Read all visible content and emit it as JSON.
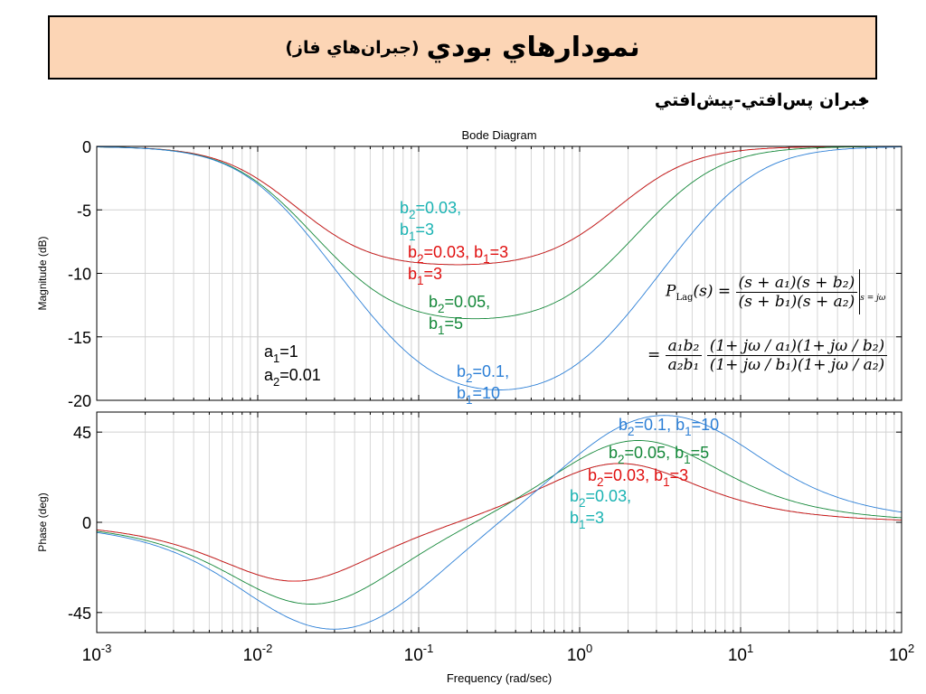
{
  "slide": {
    "title_main": "نمودارهاي بودي",
    "title_sub": "(جبران‌هاي فاز)",
    "bullet": "جبران پس‌افتي-پيش‌افتي"
  },
  "formula": {
    "lhs": "P",
    "lhs_sub": "Lag",
    "lhs_arg": "(s) =",
    "num1": "(s + a₁)(s + b₂)",
    "den1": "(s + b₁)(s + a₂)",
    "eval_sub": "s = jω",
    "eq": "=",
    "num2_a": "a₁b₂",
    "den2_a": "a₂b₁",
    "num2_b": "(1+ jω / a₁)(1+ jω / b₂)",
    "den2_b": "(1+ jω / b₁)(1+ jω / a₂)"
  },
  "chart_data": {
    "type": "line",
    "title": "Bode Diagram",
    "xlabel": "Frequency  (rad/sec)",
    "x_scale": "log",
    "xlim": [
      0.001,
      100
    ],
    "x_ticks": [
      {
        "base": "10",
        "exp": "-3"
      },
      {
        "base": "10",
        "exp": "-2"
      },
      {
        "base": "10",
        "exp": "-1"
      },
      {
        "base": "10",
        "exp": "0"
      },
      {
        "base": "10",
        "exp": "1"
      },
      {
        "base": "10",
        "exp": "2"
      }
    ],
    "grid": true,
    "params": {
      "a1": 1,
      "a2": 0.01
    },
    "params_label": [
      {
        "pre": "a",
        "sub": "1",
        "post": "=1"
      },
      {
        "pre": "a",
        "sub": "2",
        "post": "=0.01"
      }
    ],
    "magnitude": {
      "ylabel": "Magnitude (dB)",
      "ylim": [
        -20,
        0
      ],
      "y_ticks": [
        "0",
        "-5",
        "-10",
        "-15",
        "-20"
      ]
    },
    "phase": {
      "ylabel": "Phase (deg)",
      "ylim": [
        -55,
        55
      ],
      "y_ticks": [
        "45",
        "0",
        "-45"
      ]
    },
    "series": [
      {
        "b2": 0.03,
        "b1": 3,
        "color": "#1bb3b3"
      },
      {
        "b2": 0.03,
        "b1": 3,
        "color": "#e01010"
      },
      {
        "b2": 0.05,
        "b1": 5,
        "color": "#15883a"
      },
      {
        "b2": 0.1,
        "b1": 10,
        "color": "#2c7fd6"
      }
    ],
    "annotations": [
      {
        "panel": "mag",
        "color": "#1bb3b3",
        "lines": [
          "b_2=0.03,",
          "b_1=3"
        ]
      },
      {
        "panel": "mag",
        "color": "#e01010",
        "lines": [
          "b_2=0.03, b_1=3",
          "b_1=3"
        ]
      },
      {
        "panel": "mag",
        "color": "#15883a",
        "lines": [
          "b_2=0.05,",
          "b_1=5"
        ]
      },
      {
        "panel": "mag",
        "color": "#2c7fd6",
        "lines": [
          "b_2=0.1,",
          "b_1=10"
        ]
      },
      {
        "panel": "phase",
        "color": "#2c7fd6",
        "lines": [
          "b_2=0.1, b_1=10"
        ]
      },
      {
        "panel": "phase",
        "color": "#15883a",
        "lines": [
          "b_2=0.05, b_1=5"
        ]
      },
      {
        "panel": "phase",
        "color": "#e01010",
        "lines": [
          "b_2=0.03, b_1=3"
        ]
      },
      {
        "panel": "phase",
        "color": "#1bb3b3",
        "lines": [
          "b_2=0.03,",
          "b_1=3"
        ]
      }
    ]
  }
}
